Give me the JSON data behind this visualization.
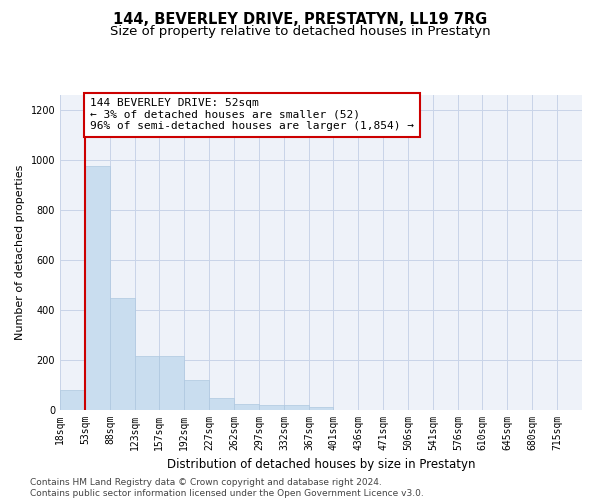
{
  "title": "144, BEVERLEY DRIVE, PRESTATYN, LL19 7RG",
  "subtitle": "Size of property relative to detached houses in Prestatyn",
  "xlabel": "Distribution of detached houses by size in Prestatyn",
  "ylabel": "Number of detached properties",
  "bar_color": "#c9ddef",
  "bar_edgecolor": "#aec8e0",
  "grid_color": "#c8d4e8",
  "background_color": "#eef2f9",
  "annotation_line1": "144 BEVERLEY DRIVE: 52sqm",
  "annotation_line2": "← 3% of detached houses are smaller (52)",
  "annotation_line3": "96% of semi-detached houses are larger (1,854) →",
  "annotation_box_color": "#ffffff",
  "annotation_border_color": "#cc0000",
  "marker_line_color": "#cc0000",
  "categories": [
    "18sqm",
    "53sqm",
    "88sqm",
    "123sqm",
    "157sqm",
    "192sqm",
    "227sqm",
    "262sqm",
    "297sqm",
    "332sqm",
    "367sqm",
    "401sqm",
    "436sqm",
    "471sqm",
    "506sqm",
    "541sqm",
    "576sqm",
    "610sqm",
    "645sqm",
    "680sqm",
    "715sqm"
  ],
  "bin_edges": [
    18,
    53,
    88,
    123,
    157,
    192,
    227,
    262,
    297,
    332,
    367,
    401,
    436,
    471,
    506,
    541,
    576,
    610,
    645,
    680,
    715,
    750
  ],
  "values": [
    80,
    975,
    450,
    215,
    215,
    120,
    48,
    25,
    22,
    20,
    12,
    0,
    0,
    0,
    0,
    0,
    0,
    0,
    0,
    0,
    0
  ],
  "ylim": [
    0,
    1260
  ],
  "yticks": [
    0,
    200,
    400,
    600,
    800,
    1000,
    1200
  ],
  "footer_text": "Contains HM Land Registry data © Crown copyright and database right 2024.\nContains public sector information licensed under the Open Government Licence v3.0.",
  "title_fontsize": 10.5,
  "subtitle_fontsize": 9.5,
  "xlabel_fontsize": 8.5,
  "ylabel_fontsize": 8,
  "tick_fontsize": 7,
  "footer_fontsize": 6.5,
  "annotation_fontsize": 8
}
